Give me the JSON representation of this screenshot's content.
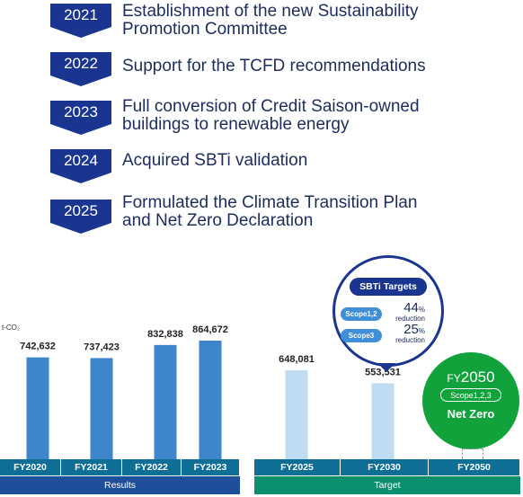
{
  "timeline": [
    {
      "year": "2021",
      "text": "Establishment of the new Sustainability\nPromotion Committee"
    },
    {
      "year": "2022",
      "text": "Support for the TCFD recommendations"
    },
    {
      "year": "2023",
      "text": "Full conversion of Credit Saison-owned\n buildings to renewable energy"
    },
    {
      "year": "2024",
      "text": "Acquired SBTi validation"
    },
    {
      "year": "2025",
      "text": "Formulated the Climate Transition Plan\nand Net Zero Declaration"
    }
  ],
  "chart_data": {
    "type": "bar",
    "unit_label": "t-CO₂",
    "categories": [
      "FY2020",
      "FY2021",
      "FY2022",
      "FY2023",
      "FY2025",
      "FY2030",
      "FY2050"
    ],
    "values": [
      742632,
      737423,
      832838,
      864672,
      648081,
      553531,
      0
    ],
    "value_labels": [
      "742,632",
      "737,423",
      "832,838",
      "864,672",
      "648,081",
      "553,531",
      ""
    ],
    "groups": [
      {
        "label": "Results",
        "categories": [
          "FY2020",
          "FY2021",
          "FY2022",
          "FY2023"
        ],
        "bar_color": "#3d86cc"
      },
      {
        "label": "Target",
        "categories": [
          "FY2025",
          "FY2030",
          "FY2050"
        ],
        "bar_color": "#bfdcf3"
      }
    ],
    "ylim": [
      0,
      1000000
    ]
  },
  "sbti": {
    "title": "SBTi Targets",
    "targets": [
      {
        "scope": "Scope1,2",
        "value": "44",
        "sign": "%",
        "note": "reduction"
      },
      {
        "scope": "Scope3",
        "value": "25",
        "sign": "%",
        "note": "reduction"
      }
    ]
  },
  "net_zero": {
    "fy_prefix": "FY",
    "fy_year": "2050",
    "scope": "Scope1,2,3",
    "label": "Net Zero"
  },
  "colors": {
    "navy": "#1a3590",
    "teal_axis": "#0f6e96",
    "results_band": "#1f4e9a",
    "target_band": "#0b8f6e",
    "green": "#11a23c"
  }
}
